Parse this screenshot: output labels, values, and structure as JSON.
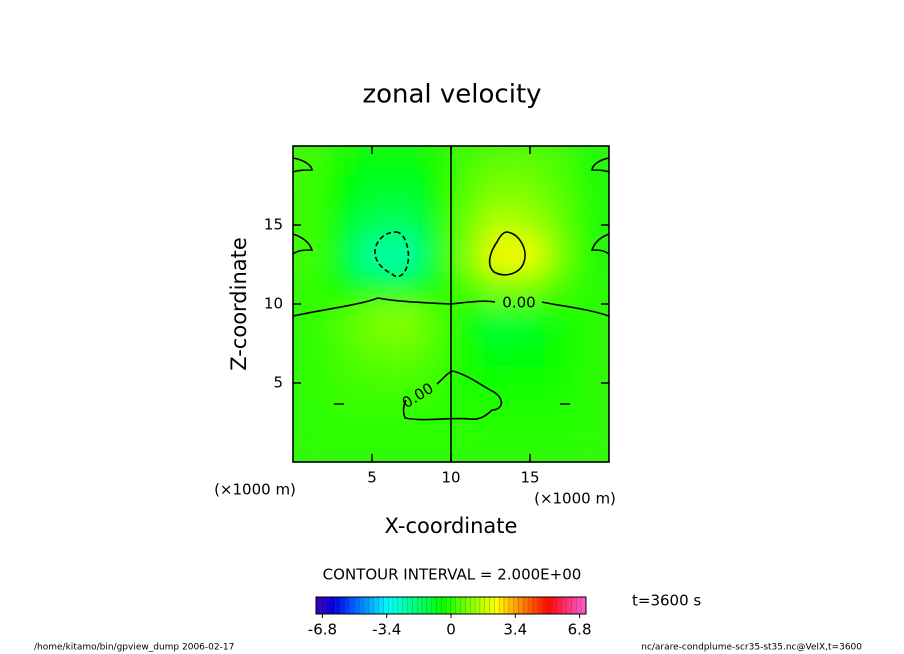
{
  "chart_data": {
    "type": "heatmap",
    "title": "zonal velocity",
    "x_label": "X-coordinate",
    "y_label": "Z-coordinate",
    "x_unit": "(×1000 m)",
    "y_unit": "(×1000 m)",
    "x": [
      1,
      3,
      5,
      7,
      9,
      11,
      13,
      15,
      17,
      19
    ],
    "z": [
      19,
      17,
      15,
      13,
      11,
      9,
      7,
      5,
      3,
      1
    ],
    "values": [
      [
        0.3,
        -0.3,
        -0.6,
        -0.6,
        -0.3,
        0.3,
        0.6,
        0.6,
        0.3,
        -0.3
      ],
      [
        0.2,
        -0.5,
        -0.9,
        -1.0,
        -0.5,
        0.5,
        1.0,
        0.9,
        0.5,
        -0.2
      ],
      [
        0.2,
        -0.6,
        -1.4,
        -1.6,
        -0.7,
        0.7,
        1.6,
        1.4,
        0.6,
        -0.2
      ],
      [
        0.3,
        -0.8,
        -2.3,
        -2.5,
        -0.9,
        0.9,
        2.5,
        2.3,
        0.8,
        -0.3
      ],
      [
        0.1,
        -0.3,
        -0.8,
        -0.9,
        -0.3,
        0.3,
        0.9,
        0.8,
        0.3,
        -0.1
      ],
      [
        0.0,
        0.4,
        0.9,
        1.1,
        0.5,
        -0.5,
        -1.1,
        -0.9,
        -0.4,
        0.0
      ],
      [
        0.0,
        0.3,
        0.6,
        0.7,
        0.4,
        -0.4,
        -0.7,
        -0.6,
        -0.3,
        0.0
      ],
      [
        0.0,
        0.2,
        0.3,
        0.3,
        0.2,
        -0.2,
        -0.3,
        -0.3,
        -0.2,
        0.0
      ],
      [
        0.0,
        0.1,
        0.1,
        0.1,
        0.0,
        0.0,
        -0.1,
        -0.1,
        -0.1,
        0.0
      ],
      [
        0.0,
        0.0,
        0.0,
        0.0,
        0.0,
        0.0,
        0.0,
        0.0,
        0.0,
        0.0
      ]
    ],
    "xlim": [
      0,
      20
    ],
    "ylim": [
      0,
      20
    ],
    "xticks": [
      5,
      10,
      15
    ],
    "yticks": [
      5,
      10,
      15
    ],
    "contour_labels": [
      "0.00",
      "0.00"
    ],
    "contour_interval": "CONTOUR INTERVAL = 2.000E+00",
    "time_label": "t=3600 s",
    "clim": [
      -7.14,
      7.14
    ],
    "cticks": [
      -6.8,
      -3.4,
      0,
      3.4,
      6.8
    ],
    "footer_left": "/home/kitamo/bin/gpview_dump  2006-02-17",
    "footer_right": "nc/arare-condplume-scr35-st35.nc@VelX,t=3600"
  }
}
